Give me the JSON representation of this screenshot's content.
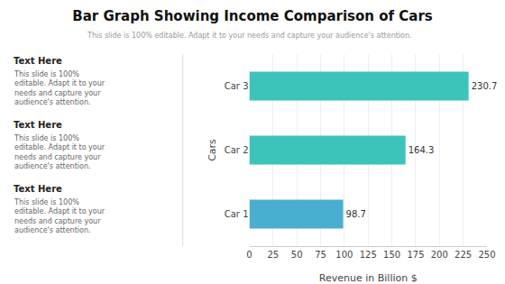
{
  "chart_data": {
    "type": "bar",
    "orientation": "horizontal",
    "title": "Bar Graph Showing Income Comparison of Cars",
    "subtitle": "This slide is 100% editable. Adapt it to your needs and capture your audience's attention.",
    "categories": [
      "Car 1",
      "Car 2",
      "Car 3"
    ],
    "values": [
      98.7,
      164.3,
      230.7
    ],
    "colors": [
      "#4aaed0",
      "#3cc4ba",
      "#3cc4ba"
    ],
    "xlabel": "Revenue in Billion $",
    "ylabel": "Cars",
    "xlim": [
      0,
      250
    ],
    "xticks": [
      0,
      25,
      50,
      75,
      100,
      125,
      150,
      175,
      200,
      225,
      250
    ],
    "grid": true,
    "data_labels": true,
    "annotations": [
      {
        "label": "Text Here",
        "text": "This slide is 100%\neditable. Adapt it to your\nneeds and capture your\naudience's attention."
      },
      {
        "label": "Text Here",
        "text": "This slide is 100%\neditable. Adapt it to your\nneeds and capture your\naudience's attention."
      },
      {
        "label": "Text Here",
        "text": "This slide is 100%\neditable. Adapt it to your\nneeds and capture your\naudience's attention."
      }
    ]
  }
}
